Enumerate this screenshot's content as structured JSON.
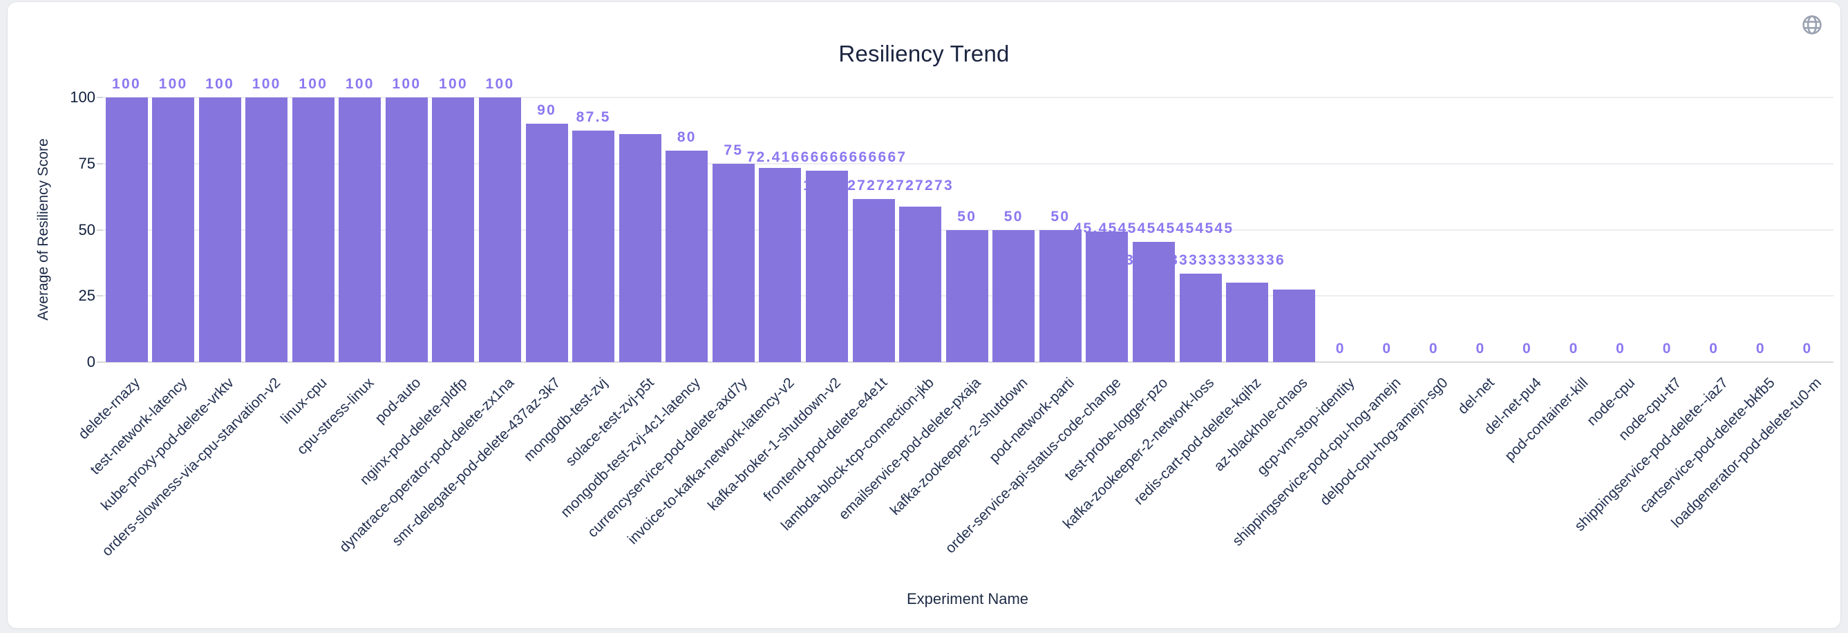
{
  "page": {
    "background": "#edeff3",
    "card_background": "#ffffff",
    "card_border": "#e3e5e9"
  },
  "header": {
    "title": "Resiliency Trend",
    "globe_icon_color": "#9ba3b2"
  },
  "chart_data": {
    "type": "bar",
    "title": "Resiliency Trend",
    "xlabel": "Experiment Name",
    "ylabel": "Average of Resiliency Score",
    "ylim": [
      0,
      100
    ],
    "yticks": [
      0,
      25,
      50,
      75,
      100
    ],
    "grid": true,
    "legend": "none",
    "bar_color": "#8775de",
    "value_label_color": "#8b78f0",
    "categories": [
      "delete-rnazy",
      "test-network-latency",
      "kube-proxy-pod-delete-vrktv",
      "orders-slowness-via-cpu-starvation-v2",
      "linux-cpu",
      "cpu-stress-linux",
      "pod-auto",
      "nginx-pod-delete-pldfp",
      "dynatrace-operator-pod-delete-zx1na",
      "smr-delegate-pod-delete-437az-3k7",
      "mongodb-test-zvj",
      "solace-test-zvj-p5t",
      "mongodb-test-zvj-4c1-latency",
      "currencyservice-pod-delete-axd7y",
      "invoice-to-kafka-network-latency-v2",
      "kafka-broker-1-shutdown-v2",
      "frontend-pod-delete-e4e1t",
      "lambda-block-tcp-connection-jkb",
      "emailservice-pod-delete-pxaja",
      "kafka-zookeeper-2-shutdown",
      "pod-network-parti",
      "order-service-api-status-code-change",
      "test-probe-logger-pzo",
      "kafka-zookeeper-2-network-loss",
      "redis-cart-pod-delete-kqihz",
      "az-blackhole-chaos",
      "gcp-vm-stop-identity",
      "shippingservice-pod-cpu-hog-amejn",
      "delpod-cpu-hog-amejn-sg0",
      "del-net",
      "del-net-pu4",
      "pod-container-kill",
      "node-cpu",
      "node-cpu-tt7",
      "shippingservice-pod-delete--iaz7",
      "cartservice-pod-delete-bkfb5",
      "loadgenerator-pod-delete-tu0-m"
    ],
    "values": [
      100,
      100,
      100,
      100,
      100,
      100,
      100,
      100,
      100,
      90,
      87.5,
      86.2,
      80,
      75,
      73.3,
      72.41666666666667,
      61.72727272727273,
      58.7,
      50,
      50,
      50,
      49.4,
      45.45454545454545,
      33.333333333333336,
      30,
      27.3,
      0,
      0,
      0,
      0,
      0,
      0,
      0,
      0,
      0,
      0,
      0
    ],
    "bar_labels": [
      "100",
      "100",
      "100",
      "100",
      "100",
      "100",
      "100",
      "100",
      "100",
      "90",
      "87.5",
      "",
      "80",
      "75",
      "",
      "72.41666666666667",
      "61.72727272727273",
      "",
      "50",
      "50",
      "50",
      "",
      "45.45454545454545",
      "33.333333333333336",
      "",
      "",
      "0",
      "0",
      "0",
      "0",
      "0",
      "0",
      "0",
      "0",
      "0",
      "0",
      "0"
    ]
  }
}
